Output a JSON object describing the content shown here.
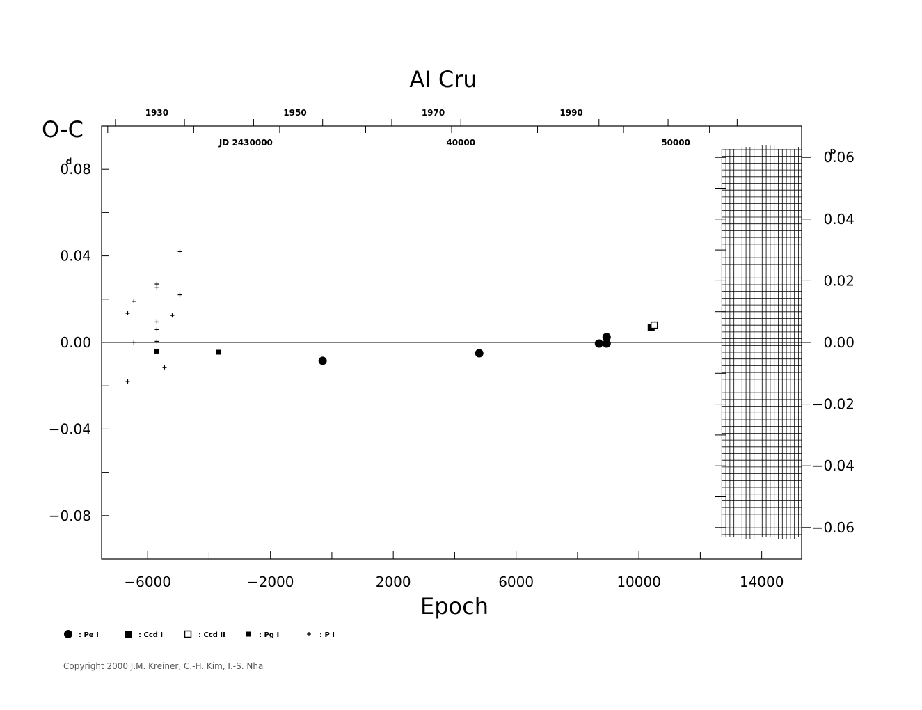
{
  "chart_data": {
    "type": "scatter",
    "title": "AI Cru",
    "xlabel": "Epoch",
    "ylabel": "O-C",
    "y_unit_left": "d",
    "y_unit_right": "p",
    "xlim": [
      -7500,
      15300
    ],
    "ylim": [
      -0.1,
      0.1
    ],
    "y_right_ticks": [
      "0.06",
      "0.04",
      "0.02",
      "0.00",
      "−0.02",
      "−0.04",
      "−0.06"
    ],
    "y_right_values": [
      0.06,
      0.04,
      0.02,
      0.0,
      -0.02,
      -0.04,
      -0.06
    ],
    "x_ticks": [
      "−6000",
      "−2000",
      "2000",
      "6000",
      "10000",
      "14000"
    ],
    "x_tick_values": [
      -6000,
      -2000,
      2000,
      6000,
      10000,
      14000
    ],
    "y_ticks": [
      "0.08",
      "0.04",
      "0.00",
      "−0.04",
      "−0.08"
    ],
    "y_tick_values": [
      0.08,
      0.04,
      0.0,
      -0.04,
      -0.08
    ],
    "top_year_ticks": [
      "1930",
      "1950",
      "1970",
      "1990"
    ],
    "top_year_epochs": [
      -5700,
      -1200,
      3300,
      7800
    ],
    "jd_ticks": [
      "JD 2430000",
      "40000",
      "50000"
    ],
    "jd_epochs": [
      -2800,
      4200,
      11200
    ],
    "grid": false,
    "hatched_region_x": [
      12700,
      15300
    ],
    "series": [
      {
        "name": "Pe I",
        "marker": "circle",
        "points": [
          [
            -300,
            -0.0085
          ],
          [
            4800,
            -0.005
          ],
          [
            8700,
            -0.0005
          ],
          [
            8950,
            -0.0005
          ],
          [
            8950,
            0.0025
          ]
        ]
      },
      {
        "name": "Ccd I",
        "marker": "square",
        "points": [
          [
            10400,
            0.007
          ]
        ]
      },
      {
        "name": "Ccd II",
        "marker": "open-square",
        "points": [
          [
            10500,
            0.008
          ]
        ]
      },
      {
        "name": "Pg I",
        "marker": "small-square",
        "points": [
          [
            -3700,
            -0.0045
          ],
          [
            -5700,
            -0.004
          ]
        ]
      },
      {
        "name": "P I",
        "marker": "plus",
        "points": [
          [
            -6650,
            0.0135
          ],
          [
            -6450,
            0.019
          ],
          [
            -6450,
            0.0
          ],
          [
            -6650,
            -0.018
          ],
          [
            -5700,
            0.027
          ],
          [
            -5700,
            0.0255
          ],
          [
            -5700,
            0.0095
          ],
          [
            -5700,
            0.006
          ],
          [
            -5700,
            0.0005
          ],
          [
            -5700,
            -0.004
          ],
          [
            -5450,
            -0.0115
          ],
          [
            -5200,
            0.0125
          ],
          [
            -4950,
            0.042
          ],
          [
            -4950,
            0.022
          ]
        ]
      }
    ],
    "legend": [
      {
        "marker": "circle",
        "label": ": Pe I"
      },
      {
        "marker": "square",
        "label": ": Ccd I"
      },
      {
        "marker": "open-square",
        "label": ": Ccd II"
      },
      {
        "marker": "small-square",
        "label": ": Pg I"
      },
      {
        "marker": "plus",
        "label": ": P I"
      }
    ],
    "legend_placement": "bottom-left"
  },
  "copyright": "Copyright 2000 J.M. Kreiner, C.-H. Kim, I.-S. Nha"
}
